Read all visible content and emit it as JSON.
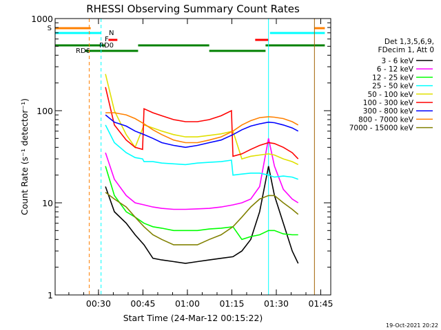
{
  "chart_data": {
    "type": "line",
    "title": "RHESSI Observing Summary Count Rates",
    "xlabel": "Start Time (24-Mar-12 00:15:22)",
    "ylabel": "Count Rate (s⁻¹ detector⁻¹)",
    "yscale": "log",
    "ylim": [
      1,
      1000
    ],
    "xlim_minutes": [
      0.0,
      93.0
    ],
    "x_unit": "minutes after 00:15:22",
    "x_ticks": [
      {
        "label": "00:30",
        "minute": 14.63
      },
      {
        "label": "00:45",
        "minute": 29.63
      },
      {
        "label": "01:00",
        "minute": 44.63
      },
      {
        "label": "01:15",
        "minute": 59.63
      },
      {
        "label": "01:30",
        "minute": 74.63
      },
      {
        "label": "01:45",
        "minute": 89.63
      }
    ],
    "y_ticks": [
      {
        "label": "1",
        "value": 1
      },
      {
        "label": "10",
        "value": 10
      },
      {
        "label": "100",
        "value": 100
      },
      {
        "label": "1000",
        "value": 1000
      }
    ],
    "legend": {
      "header": [
        "Det 1,3,5,6,9,",
        "FDecim 1, Att 0"
      ],
      "placement": "right"
    },
    "series": [
      {
        "name": "3 - 6 keV",
        "color": "#000000",
        "x": [
          17.0,
          20.0,
          24.0,
          27.0,
          30.0,
          33.0,
          36.0,
          40.0,
          44.0,
          48.0,
          52.0,
          56.0,
          60.0,
          63.0,
          66.0,
          69.0,
          72.0,
          74.0,
          77.0,
          80.0,
          82.0
        ],
        "y": [
          15.0,
          8.0,
          6.0,
          4.5,
          3.5,
          2.5,
          2.4,
          2.3,
          2.2,
          2.3,
          2.4,
          2.5,
          2.6,
          3.0,
          4.0,
          8.0,
          25.0,
          12.0,
          6.0,
          3.0,
          2.2
        ]
      },
      {
        "name": "6 - 12 keV",
        "color": "#ff00ff",
        "x": [
          17.0,
          20.0,
          24.0,
          27.0,
          30.0,
          33.0,
          36.0,
          40.0,
          44.0,
          48.0,
          52.0,
          56.0,
          60.0,
          63.0,
          66.0,
          69.0,
          72.0,
          74.0,
          77.0,
          80.0,
          82.0
        ],
        "y": [
          35.0,
          18.0,
          12.0,
          10.0,
          9.5,
          9.0,
          8.7,
          8.5,
          8.5,
          8.6,
          8.7,
          9.0,
          9.5,
          10.0,
          11.0,
          15.0,
          50.0,
          25.0,
          14.0,
          11.0,
          10.0
        ]
      },
      {
        "name": "12 - 25 keV",
        "color": "#00ff00",
        "x": [
          17.0,
          20.0,
          24.0,
          27.0,
          30.0,
          33.0,
          36.0,
          40.0,
          44.0,
          48.0,
          52.0,
          56.0,
          60.0,
          63.0,
          66.0,
          69.0,
          72.0,
          74.0,
          77.0,
          80.0,
          82.0
        ],
        "y": [
          25.0,
          12.0,
          8.0,
          7.0,
          6.0,
          5.5,
          5.3,
          5.0,
          5.0,
          5.0,
          5.2,
          5.3,
          5.5,
          4.0,
          4.3,
          4.5,
          5.0,
          5.0,
          4.6,
          4.5,
          4.5
        ]
      },
      {
        "name": "25 - 50 keV",
        "color": "#00ffff",
        "x": [
          17.0,
          20.0,
          24.0,
          27.0,
          29.5,
          30.0,
          33.0,
          36.0,
          40.0,
          44.0,
          48.0,
          52.0,
          56.0,
          59.5,
          60.0,
          63.0,
          66.0,
          69.0,
          72.0,
          74.0,
          77.0,
          80.0,
          82.0
        ],
        "y": [
          70.0,
          45.0,
          35.0,
          31.0,
          30.0,
          28.0,
          28.0,
          27.0,
          26.5,
          26.0,
          27.0,
          27.5,
          28.0,
          29.0,
          20.0,
          20.5,
          21.0,
          21.0,
          20.0,
          19.0,
          19.5,
          19.0,
          18.0
        ]
      },
      {
        "name": "50 - 100 keV",
        "color": "#e0e000",
        "x": [
          17.0,
          20.0,
          24.0,
          27.0,
          30.0,
          33.0,
          36.0,
          40.0,
          44.0,
          48.0,
          52.0,
          56.0,
          60.0,
          63.0,
          66.0,
          69.0,
          72.0,
          74.0,
          77.0,
          80.0,
          82.0
        ],
        "y": [
          250.0,
          100.0,
          55.0,
          40.0,
          70.0,
          65.0,
          60.0,
          55.0,
          52.0,
          52.0,
          54.0,
          56.0,
          60.0,
          30.0,
          32.0,
          33.0,
          34.0,
          33.0,
          30.0,
          28.0,
          26.0
        ]
      },
      {
        "name": "100 - 300 keV",
        "color": "#ff0000",
        "x": [
          17.0,
          20.0,
          24.0,
          27.0,
          29.5,
          30.0,
          33.0,
          36.0,
          40.0,
          44.0,
          48.0,
          52.0,
          56.0,
          59.5,
          60.0,
          63.0,
          66.0,
          69.0,
          72.0,
          74.0,
          77.0,
          80.0,
          82.0
        ],
        "y": [
          180.0,
          70.0,
          48.0,
          40.0,
          38.0,
          105.0,
          95.0,
          88.0,
          80.0,
          76.0,
          76.0,
          80.0,
          88.0,
          100.0,
          32.0,
          34.0,
          38.0,
          42.0,
          45.0,
          44.0,
          40.0,
          35.0,
          30.0
        ]
      },
      {
        "name": "300 - 800 keV",
        "color": "#0000ff",
        "x": [
          17.0,
          20.0,
          24.0,
          27.0,
          30.0,
          33.0,
          36.0,
          40.0,
          44.0,
          48.0,
          52.0,
          56.0,
          60.0,
          63.0,
          66.0,
          69.0,
          72.0,
          74.0,
          77.0,
          80.0,
          82.0
        ],
        "y": [
          90.0,
          75.0,
          68.0,
          60.0,
          55.0,
          50.0,
          45.0,
          42.0,
          40.0,
          42.0,
          45.0,
          48.0,
          55.0,
          62.0,
          68.0,
          72.0,
          75.0,
          74.0,
          70.0,
          65.0,
          60.0
        ]
      },
      {
        "name": "800 - 7000 keV",
        "color": "#ff8000",
        "x": [
          17.0,
          20.0,
          24.0,
          27.0,
          30.0,
          33.0,
          36.0,
          40.0,
          44.0,
          48.0,
          52.0,
          56.0,
          60.0,
          63.0,
          66.0,
          69.0,
          72.0,
          74.0,
          77.0,
          80.0,
          82.0
        ],
        "y": [
          95.0,
          95.0,
          90.0,
          82.0,
          72.0,
          62.0,
          55.0,
          48.0,
          45.0,
          45.0,
          48.0,
          52.0,
          60.0,
          70.0,
          78.0,
          84.0,
          86.0,
          85.0,
          82.0,
          76.0,
          70.0
        ]
      },
      {
        "name": "7000 - 15000 keV",
        "color": "#808000",
        "x": [
          17.0,
          20.0,
          24.0,
          27.0,
          30.0,
          33.0,
          36.0,
          40.0,
          44.0,
          48.0,
          52.0,
          56.0,
          60.0,
          63.0,
          66.0,
          69.0,
          72.0,
          74.0,
          77.0,
          80.0,
          82.0
        ],
        "y": [
          13.0,
          11.0,
          9.0,
          7.0,
          5.5,
          4.5,
          4.0,
          3.5,
          3.5,
          3.5,
          4.0,
          4.5,
          5.5,
          7.0,
          9.0,
          11.0,
          12.0,
          12.0,
          10.0,
          8.5,
          7.5
        ]
      }
    ],
    "state_bars": [
      {
        "label": "S",
        "color": "#ff8000",
        "segments_minutes": [
          [
            0.0,
            12.0
          ],
          [
            87.5,
            91.0
          ]
        ]
      },
      {
        "label": "N",
        "color": "#00ffff",
        "segments_minutes": [
          [
            0.0,
            15.5
          ],
          [
            72.5,
            91.0
          ]
        ]
      },
      {
        "label": "F",
        "color": "#ff0000",
        "segments_minutes": [
          [
            18.0,
            21.0
          ],
          [
            67.5,
            72.0
          ]
        ]
      },
      {
        "label": "RD0",
        "color": "#008000",
        "segments_minutes": [
          [
            0.0,
            17.0
          ],
          [
            28.0,
            52.0
          ],
          [
            71.0,
            91.0
          ]
        ]
      },
      {
        "label": "RD6",
        "color": "#008000",
        "segments_minutes": [
          [
            10.0,
            28.0
          ],
          [
            52.0,
            71.0
          ]
        ]
      }
    ],
    "vertical_markers": [
      {
        "minute": 11.5,
        "color": "#ff8000",
        "style": "dashed"
      },
      {
        "minute": 15.5,
        "color": "#00ffff",
        "style": "dashed"
      },
      {
        "minute": 72.0,
        "color": "#00ffff",
        "style": "solid"
      },
      {
        "minute": 87.5,
        "color": "#a06000",
        "style": "solid"
      },
      {
        "minute": 93.0,
        "color": "#ff8000",
        "style": "dashed"
      }
    ]
  },
  "footer": {
    "timestamp": "19-Oct-2021 20:22"
  }
}
